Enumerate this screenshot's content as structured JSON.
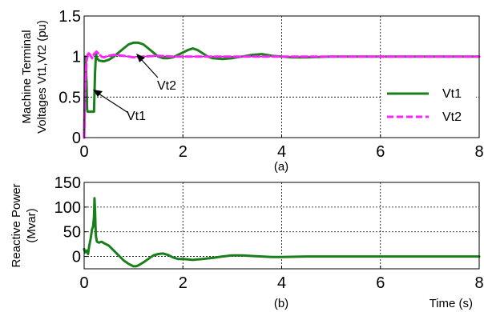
{
  "chart_data": [
    {
      "type": "line",
      "caption": "(a)",
      "ylabel": [
        "Machine Terminal",
        "Voltages Vt1,Vt2 (pu)"
      ],
      "xlim": [
        0,
        8
      ],
      "ylim": [
        0,
        1.5
      ],
      "grid": true,
      "legend_position": "bottom-right",
      "xticks": [
        "0",
        "2",
        "4",
        "6",
        "8"
      ],
      "yticks": [
        "0",
        "0.5",
        "1",
        "1.5"
      ],
      "series": [
        {
          "name": "Vt1",
          "color": "#1a7f1a",
          "style": "solid",
          "x": [
            0,
            0.02,
            0.03,
            0.05,
            0.06,
            0.07,
            0.08,
            0.09,
            0.1,
            0.11,
            0.12,
            0.2,
            0.22,
            0.24,
            0.26,
            0.3,
            0.4,
            0.5,
            0.6,
            0.7,
            0.8,
            0.9,
            1.0,
            1.1,
            1.2,
            1.3,
            1.4,
            1.5,
            1.6,
            1.7,
            1.8,
            1.9,
            2.0,
            2.1,
            2.2,
            2.3,
            2.4,
            2.5,
            2.6,
            2.8,
            3.0,
            3.2,
            3.4,
            3.6,
            3.8,
            4.0,
            4.2,
            4.5,
            5.0,
            5.5,
            6.0,
            7.0,
            8.0
          ],
          "y": [
            0.0,
            1.0,
            1.0,
            0.65,
            0.35,
            0.32,
            0.32,
            0.32,
            0.32,
            0.32,
            0.32,
            0.32,
            0.8,
            1.03,
            0.98,
            0.95,
            0.94,
            0.96,
            1.0,
            1.05,
            1.1,
            1.15,
            1.17,
            1.17,
            1.15,
            1.1,
            1.05,
            1.0,
            0.98,
            0.98,
            0.99,
            1.02,
            1.05,
            1.08,
            1.1,
            1.08,
            1.04,
            1.0,
            0.98,
            0.97,
            0.98,
            1.0,
            1.02,
            1.03,
            1.01,
            1.0,
            0.99,
            0.99,
            1.0,
            1.0,
            1.0,
            1.0,
            1.0
          ]
        },
        {
          "name": "Vt2",
          "color": "#ff22ff",
          "style": "dashed",
          "x": [
            0,
            0.02,
            0.05,
            0.08,
            0.12,
            0.16,
            0.2,
            0.25,
            0.3,
            0.35,
            0.4,
            0.5,
            0.6,
            0.8,
            1.0,
            1.2,
            1.5,
            1.8,
            2.0,
            2.5,
            3.0,
            4.0,
            5.0,
            6.0,
            7.0,
            8.0
          ],
          "y": [
            0.0,
            0.6,
            0.95,
            1.05,
            1.02,
            0.98,
            1.03,
            1.06,
            1.03,
            1.0,
            0.99,
            1.01,
            1.02,
            1.01,
            0.99,
            1.0,
            1.01,
            1.0,
            1.0,
            1.0,
            1.0,
            1.0,
            1.0,
            1.0,
            1.0,
            1.0
          ]
        }
      ],
      "annotations": [
        {
          "text": "Vt1",
          "target_x": 0.15,
          "target_y": 0.58
        },
        {
          "text": "Vt2",
          "target_x": 1.05,
          "target_y": 1.02
        }
      ]
    },
    {
      "type": "line",
      "caption": "(b)",
      "ylabel": [
        "Reactive Power",
        "(Mvar)"
      ],
      "xlabel": "Time (s)",
      "xlim": [
        0,
        8
      ],
      "ylim": [
        -25,
        150
      ],
      "grid": true,
      "xticks": [
        "0",
        "2",
        "4",
        "6",
        "8"
      ],
      "yticks": [
        "0",
        "50",
        "100",
        "150"
      ],
      "series": [
        {
          "name": "",
          "color": "#1a7f1a",
          "style": "solid",
          "x": [
            0,
            0.02,
            0.05,
            0.08,
            0.1,
            0.13,
            0.16,
            0.18,
            0.2,
            0.21,
            0.22,
            0.23,
            0.24,
            0.26,
            0.3,
            0.35,
            0.4,
            0.5,
            0.6,
            0.7,
            0.8,
            0.9,
            1.0,
            1.05,
            1.1,
            1.2,
            1.3,
            1.4,
            1.5,
            1.6,
            1.7,
            1.8,
            1.9,
            2.0,
            2.1,
            2.2,
            2.3,
            2.4,
            2.6,
            2.8,
            3.0,
            3.2,
            3.4,
            3.6,
            3.8,
            4.0,
            4.5,
            5.0,
            6.0,
            7.0,
            8.0
          ],
          "y": [
            15,
            8,
            12,
            5,
            20,
            35,
            55,
            60,
            80,
            118,
            95,
            60,
            40,
            30,
            28,
            30,
            27,
            22,
            12,
            2,
            -8,
            -15,
            -20,
            -20,
            -18,
            -12,
            -5,
            2,
            5,
            6,
            3,
            -2,
            -5,
            -5,
            -6,
            -7,
            -6,
            -5,
            -3,
            0,
            2,
            2,
            1,
            0,
            -1,
            -1,
            0,
            0,
            0,
            0,
            0
          ]
        }
      ]
    }
  ]
}
